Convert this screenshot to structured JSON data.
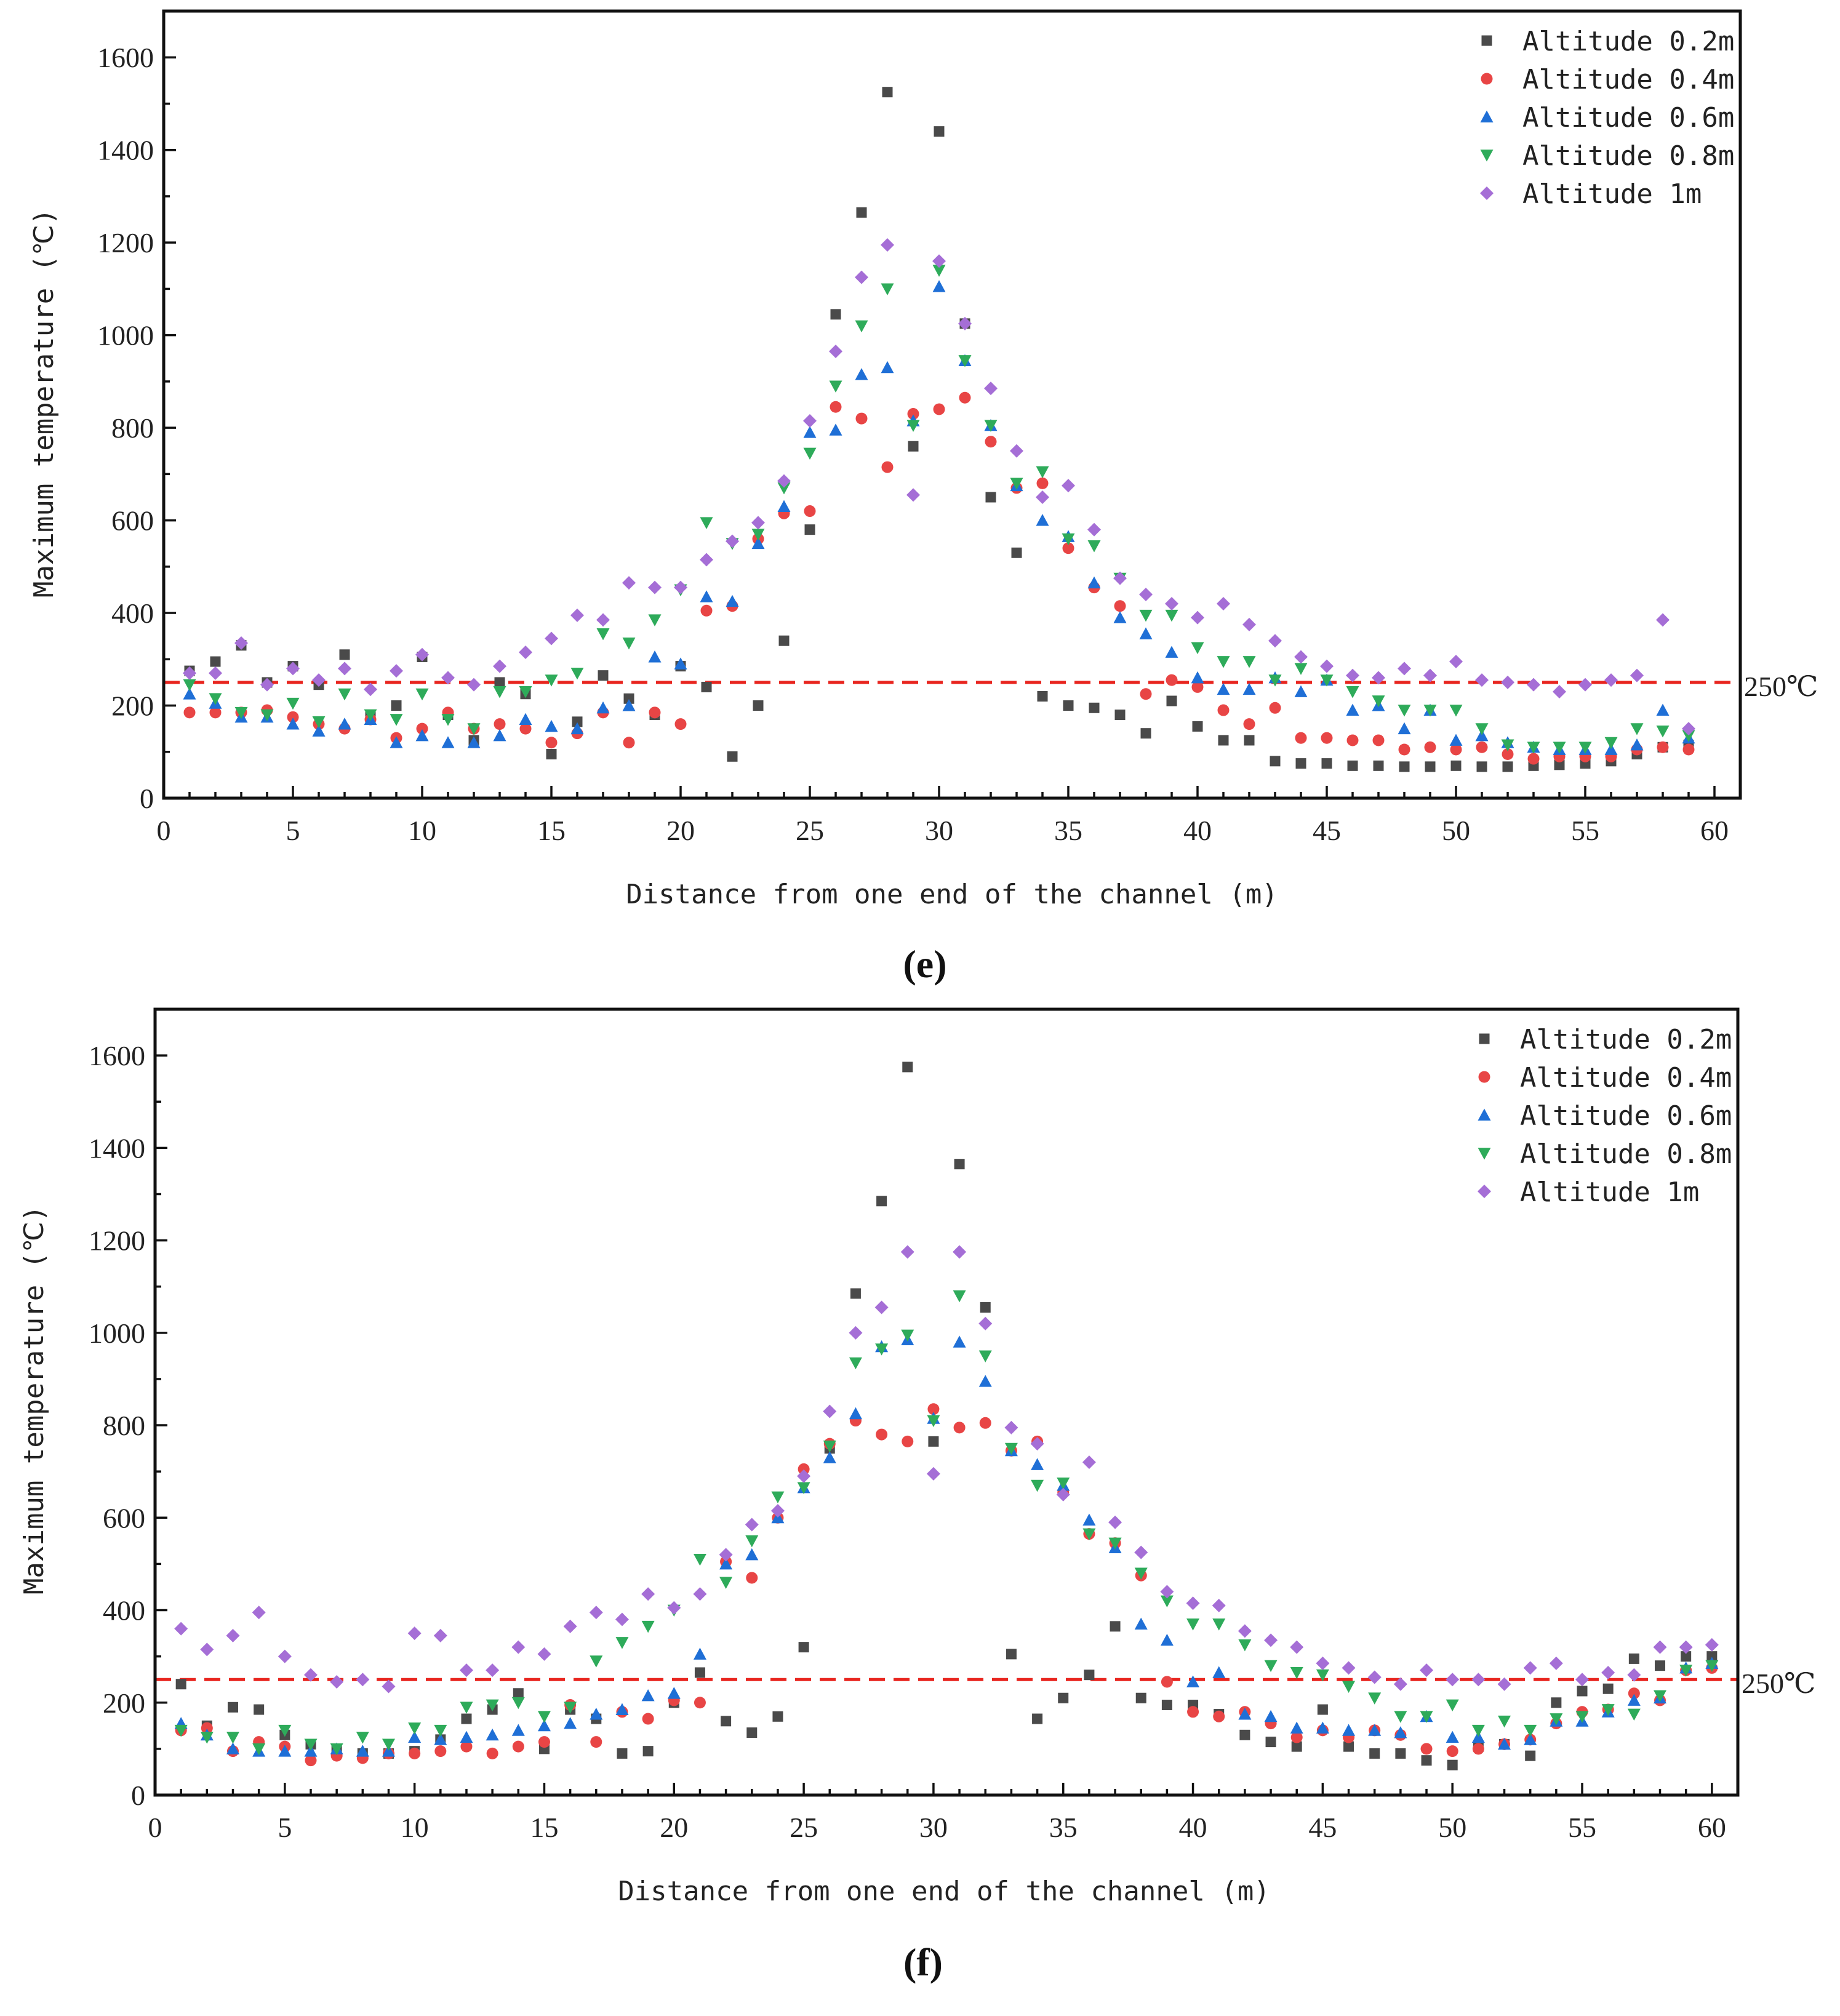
{
  "chart_data": [
    {
      "type": "scatter",
      "panel_label": "(e)",
      "xlabel": "Distance from one end of the channel (m)",
      "ylabel": "Maximum temperature (℃)",
      "xlim": [
        0,
        61
      ],
      "ylim": [
        0,
        1700
      ],
      "xticks": [
        0,
        5,
        10,
        15,
        20,
        25,
        30,
        35,
        40,
        45,
        50,
        55,
        60
      ],
      "yticks": [
        0,
        200,
        400,
        600,
        800,
        1000,
        1200,
        1400,
        1600
      ],
      "reference_line": {
        "value": 250,
        "label": "250℃",
        "color": "#e8251f"
      },
      "legend_position": "top-right",
      "x": [
        1,
        2,
        3,
        4,
        5,
        6,
        7,
        8,
        9,
        10,
        11,
        12,
        13,
        14,
        15,
        16,
        17,
        18,
        19,
        20,
        21,
        22,
        23,
        24,
        25,
        26,
        27,
        28,
        29,
        30,
        31,
        32,
        33,
        34,
        35,
        36,
        37,
        38,
        39,
        40,
        41,
        42,
        43,
        44,
        45,
        46,
        47,
        48,
        49,
        50,
        51,
        52,
        53,
        54,
        55,
        56,
        57,
        58,
        59
      ],
      "series": [
        {
          "name": "Altitude 0.2m",
          "marker": "square",
          "color": "#4a4a4a",
          "values": [
            275,
            295,
            330,
            250,
            285,
            245,
            310,
            175,
            200,
            305,
            180,
            125,
            250,
            225,
            95,
            165,
            265,
            215,
            180,
            285,
            240,
            90,
            200,
            340,
            580,
            1045,
            1265,
            1525,
            760,
            1440,
            1025,
            650,
            530,
            220,
            200,
            195,
            180,
            140,
            210,
            155,
            125,
            125,
            80,
            75,
            75,
            70,
            70,
            68,
            68,
            70,
            68,
            68,
            70,
            72,
            75,
            80,
            95,
            110,
            115
          ]
        },
        {
          "name": "Altitude 0.4m",
          "marker": "circle",
          "color": "#e84545",
          "values": [
            185,
            185,
            185,
            190,
            175,
            160,
            150,
            170,
            130,
            150,
            185,
            150,
            160,
            150,
            120,
            140,
            185,
            120,
            185,
            160,
            405,
            415,
            560,
            615,
            620,
            845,
            820,
            715,
            830,
            840,
            865,
            770,
            670,
            680,
            540,
            455,
            415,
            225,
            255,
            240,
            190,
            160,
            195,
            130,
            130,
            125,
            125,
            105,
            110,
            105,
            110,
            95,
            85,
            90,
            90,
            90,
            105,
            110,
            105
          ]
        },
        {
          "name": "Altitude 0.6m",
          "marker": "triangle-up",
          "color": "#1f6fd6",
          "values": [
            225,
            205,
            175,
            175,
            160,
            145,
            160,
            170,
            120,
            135,
            120,
            120,
            135,
            170,
            155,
            150,
            195,
            200,
            305,
            290,
            435,
            425,
            550,
            630,
            790,
            795,
            915,
            930,
            815,
            1105,
            945,
            805,
            675,
            600,
            565,
            465,
            390,
            355,
            315,
            260,
            235,
            235,
            260,
            230,
            255,
            190,
            200,
            150,
            190,
            125,
            135,
            120,
            110,
            105,
            105,
            105,
            115,
            190,
            130
          ]
        },
        {
          "name": "Altitude 0.8m",
          "marker": "triangle-down",
          "color": "#2eab5a",
          "values": [
            245,
            215,
            185,
            180,
            205,
            165,
            225,
            180,
            170,
            225,
            170,
            150,
            230,
            230,
            255,
            270,
            355,
            335,
            385,
            450,
            595,
            550,
            570,
            670,
            745,
            890,
            1020,
            1100,
            805,
            1140,
            945,
            805,
            680,
            705,
            560,
            545,
            475,
            395,
            395,
            325,
            295,
            295,
            255,
            280,
            255,
            230,
            210,
            190,
            190,
            190,
            150,
            115,
            110,
            110,
            110,
            120,
            150,
            145,
            135
          ]
        },
        {
          "name": "Altitude 1m",
          "marker": "diamond",
          "color": "#a56ed6",
          "values": [
            270,
            270,
            335,
            245,
            280,
            255,
            280,
            235,
            275,
            310,
            260,
            245,
            285,
            315,
            345,
            395,
            385,
            465,
            455,
            455,
            515,
            555,
            595,
            685,
            815,
            965,
            1125,
            1195,
            655,
            1160,
            1025,
            885,
            750,
            650,
            675,
            580,
            475,
            440,
            420,
            390,
            420,
            375,
            340,
            305,
            285,
            265,
            260,
            280,
            265,
            295,
            255,
            250,
            245,
            230,
            245,
            255,
            265,
            385,
            150
          ]
        }
      ]
    },
    {
      "type": "scatter",
      "panel_label": "(f)",
      "xlabel": "Distance from one end of the channel (m)",
      "ylabel": "Maximum temperature (℃)",
      "xlim": [
        0,
        61
      ],
      "ylim": [
        0,
        1700
      ],
      "xticks": [
        0,
        5,
        10,
        15,
        20,
        25,
        30,
        35,
        40,
        45,
        50,
        55,
        60
      ],
      "yticks": [
        0,
        200,
        400,
        600,
        800,
        1000,
        1200,
        1400,
        1600
      ],
      "reference_line": {
        "value": 250,
        "label": "250℃",
        "color": "#e8251f"
      },
      "legend_position": "top-right",
      "x": [
        1,
        2,
        3,
        4,
        5,
        6,
        7,
        8,
        9,
        10,
        11,
        12,
        13,
        14,
        15,
        16,
        17,
        18,
        19,
        20,
        21,
        22,
        23,
        24,
        25,
        26,
        27,
        28,
        29,
        30,
        31,
        32,
        33,
        34,
        35,
        36,
        37,
        38,
        39,
        40,
        41,
        42,
        43,
        44,
        45,
        46,
        47,
        48,
        49,
        50,
        51,
        52,
        53,
        54,
        55,
        56,
        57,
        58,
        59,
        60
      ],
      "series": [
        {
          "name": "Altitude 0.2m",
          "marker": "square",
          "color": "#4a4a4a",
          "values": [
            240,
            150,
            190,
            185,
            130,
            110,
            100,
            90,
            90,
            95,
            120,
            165,
            185,
            220,
            100,
            185,
            165,
            90,
            95,
            200,
            265,
            160,
            135,
            170,
            320,
            750,
            1085,
            1285,
            1575,
            765,
            1365,
            1055,
            305,
            165,
            210,
            260,
            365,
            210,
            195,
            195,
            175,
            130,
            115,
            105,
            185,
            105,
            90,
            90,
            75,
            65,
            105,
            110,
            85,
            200,
            225,
            230,
            295,
            280,
            300,
            300
          ]
        },
        {
          "name": "Altitude 0.4m",
          "marker": "circle",
          "color": "#e84545",
          "values": [
            140,
            145,
            95,
            115,
            105,
            75,
            85,
            80,
            90,
            90,
            95,
            105,
            90,
            105,
            115,
            195,
            115,
            180,
            165,
            205,
            200,
            505,
            470,
            600,
            705,
            760,
            810,
            780,
            765,
            835,
            795,
            805,
            745,
            765,
            655,
            565,
            545,
            475,
            245,
            180,
            170,
            180,
            155,
            125,
            140,
            125,
            140,
            130,
            100,
            95,
            100,
            110,
            120,
            155,
            180,
            185,
            220,
            205,
            270,
            275
          ]
        },
        {
          "name": "Altitude 0.6m",
          "marker": "triangle-up",
          "color": "#1f6fd6",
          "values": [
            155,
            130,
            100,
            95,
            95,
            95,
            100,
            95,
            95,
            125,
            120,
            125,
            130,
            140,
            150,
            155,
            175,
            185,
            215,
            220,
            305,
            500,
            520,
            600,
            665,
            730,
            825,
            970,
            985,
            815,
            980,
            895,
            745,
            715,
            670,
            595,
            535,
            370,
            335,
            245,
            265,
            175,
            170,
            145,
            145,
            140,
            140,
            135,
            170,
            125,
            125,
            110,
            120,
            160,
            160,
            180,
            205,
            210,
            275,
            285
          ]
        },
        {
          "name": "Altitude 0.8m",
          "marker": "triangle-down",
          "color": "#2eab5a",
          "values": [
            140,
            125,
            125,
            100,
            140,
            110,
            100,
            125,
            110,
            145,
            140,
            190,
            195,
            200,
            170,
            190,
            290,
            330,
            365,
            400,
            510,
            460,
            550,
            645,
            665,
            755,
            935,
            965,
            995,
            810,
            1080,
            950,
            750,
            670,
            675,
            565,
            545,
            480,
            420,
            370,
            370,
            325,
            280,
            265,
            260,
            235,
            210,
            170,
            170,
            195,
            140,
            160,
            140,
            165,
            170,
            185,
            175,
            215,
            270,
            280
          ]
        },
        {
          "name": "Altitude 1m",
          "marker": "diamond",
          "color": "#a56ed6",
          "values": [
            360,
            315,
            345,
            395,
            300,
            260,
            245,
            250,
            235,
            350,
            345,
            270,
            270,
            320,
            305,
            365,
            395,
            380,
            435,
            405,
            435,
            520,
            585,
            615,
            690,
            830,
            1000,
            1055,
            1175,
            695,
            1175,
            1020,
            795,
            760,
            650,
            720,
            590,
            525,
            440,
            415,
            410,
            355,
            335,
            320,
            285,
            275,
            255,
            240,
            270,
            250,
            250,
            240,
            275,
            285,
            250,
            265,
            260,
            320,
            320,
            325
          ]
        }
      ]
    }
  ]
}
